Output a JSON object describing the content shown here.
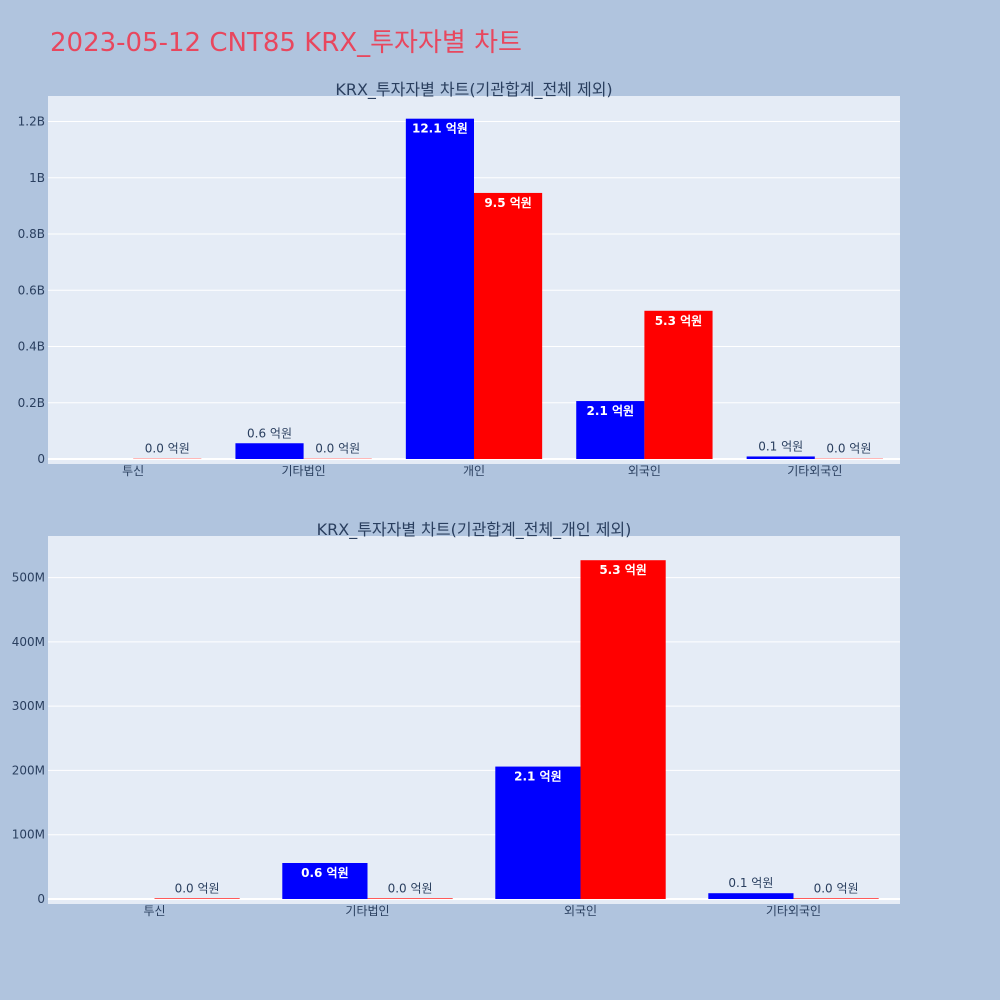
{
  "page_title": "2023-05-12 CNT85 KRX_투자자별 차트",
  "colors": {
    "buy": "#0000ff",
    "sell": "#ff0000",
    "plot_bg": "#e5ecf6",
    "paper_bg": "#b0c4de",
    "title": "#e8475e"
  },
  "chart_data": [
    {
      "type": "bar",
      "title": "KRX_투자자별 차트(기관합계_전체 제외)",
      "categories": [
        "투신",
        "기타법인",
        "개인",
        "외국인",
        "기타외국인"
      ],
      "series": [
        {
          "color": "#0000ff",
          "values": [
            0,
            56000000,
            1210000000,
            206000000,
            9000000
          ],
          "labels": [
            "",
            "0.6 억원",
            "12.1 억원",
            "2.1 억원",
            "0.1 억원"
          ]
        },
        {
          "color": "#ff0000",
          "values": [
            1000000,
            1000000,
            946000000,
            527000000,
            1000000
          ],
          "labels": [
            "0.0 억원",
            "0.0 억원",
            "9.5 억원",
            "5.3 억원",
            "0.0 억원"
          ]
        }
      ],
      "ylim": [
        0,
        1280000000
      ],
      "yticks": [
        0,
        200000000,
        400000000,
        600000000,
        800000000,
        1000000000,
        1200000000
      ],
      "ytick_labels": [
        "0",
        "0.2B",
        "0.4B",
        "0.6B",
        "0.8B",
        "1B",
        "1.2B"
      ],
      "grid": true
    },
    {
      "type": "bar",
      "title": "KRX_투자자별 차트(기관합계_전체_개인 제외)",
      "categories": [
        "투신",
        "기타법인",
        "외국인",
        "기타외국인"
      ],
      "series": [
        {
          "color": "#0000ff",
          "values": [
            0,
            56000000,
            206000000,
            9000000
          ],
          "labels": [
            "",
            "0.6 억원",
            "2.1 억원",
            "0.1 억원"
          ]
        },
        {
          "color": "#ff0000",
          "values": [
            1000000,
            1000000,
            527000000,
            1000000
          ],
          "labels": [
            "0.0 억원",
            "0.0 억원",
            "5.3 억원",
            "0.0 억원"
          ]
        }
      ],
      "ylim": [
        0,
        560000000
      ],
      "yticks": [
        0,
        100000000,
        200000000,
        300000000,
        400000000,
        500000000
      ],
      "ytick_labels": [
        "0",
        "100M",
        "200M",
        "300M",
        "400M",
        "500M"
      ],
      "grid": true
    }
  ]
}
